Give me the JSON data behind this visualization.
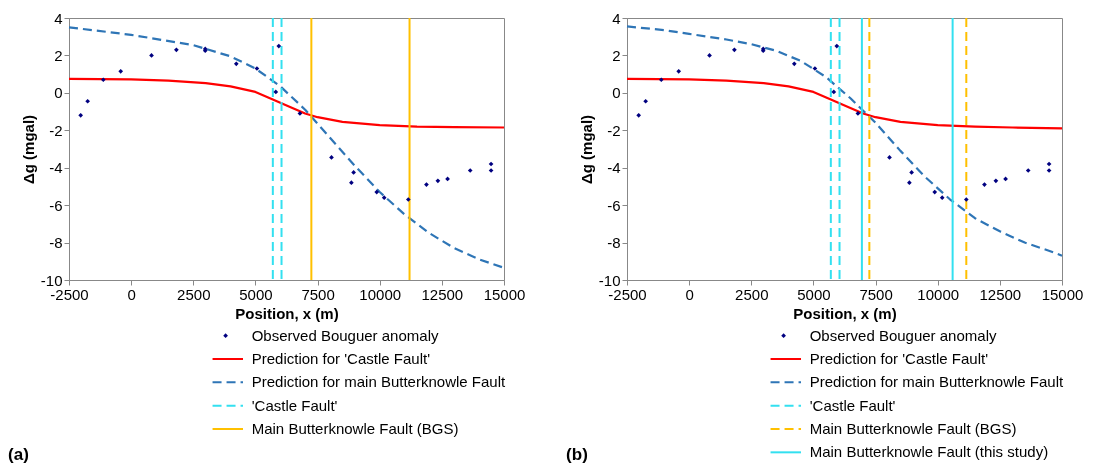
{
  "chart_data": [
    {
      "type": "line",
      "xlabel": "Position, x (m)",
      "ylabel": "Δg (mgal)",
      "xlim": [
        -2500,
        15000
      ],
      "ylim": [
        -10,
        4
      ],
      "xticks": [
        -2500,
        0,
        2500,
        5000,
        7500,
        10000,
        12500,
        15000
      ],
      "yticks": [
        -10,
        -8,
        -6,
        -4,
        -2,
        0,
        2,
        4
      ],
      "grid": false,
      "legend": "bottom",
      "annotations": [
        "(a)"
      ],
      "series": [
        {
          "name": "Observed Bouguer anomaly",
          "type": "scatter",
          "marker": "diamond",
          "color": "#000080",
          "x": [
            -2030,
            -1750,
            -1120,
            -420,
            820,
            1820,
            2980,
            2980,
            4230,
            5060,
            5940,
            5820,
            6790,
            8060,
            8860,
            8950,
            9880,
            10180,
            11150,
            11880,
            12340,
            12730,
            13640,
            14480,
            14480
          ],
          "values": [
            -1.2,
            -0.45,
            0.7,
            1.15,
            2.0,
            2.3,
            2.35,
            2.25,
            1.55,
            1.3,
            2.5,
            0.05,
            -1.1,
            -3.45,
            -4.8,
            -4.25,
            -5.3,
            -5.6,
            -5.7,
            -4.9,
            -4.7,
            -4.6,
            -4.15,
            -3.8,
            -4.15
          ]
        },
        {
          "name": "Prediction for 'Castle Fault'",
          "type": "line",
          "line_style": "solid",
          "color": "#ff0000",
          "x": [
            -2500,
            0,
            1500,
            3000,
            4000,
            5000,
            5700,
            6300,
            7000,
            7500,
            8500,
            10000,
            11500,
            13000,
            15000
          ],
          "values": [
            0.75,
            0.72,
            0.65,
            0.52,
            0.35,
            0.05,
            -0.35,
            -0.7,
            -1.1,
            -1.3,
            -1.55,
            -1.72,
            -1.8,
            -1.83,
            -1.85
          ]
        },
        {
          "name": "Prediction for main Butterknowle Fault",
          "type": "line",
          "line_style": "dashed",
          "color": "#2e75b6",
          "x": [
            -2500,
            0,
            2500,
            4000,
            5000,
            6000,
            7000,
            8000,
            9000,
            10000,
            11000,
            12000,
            13000,
            14000,
            15000
          ],
          "values": [
            3.5,
            3.1,
            2.55,
            1.95,
            1.3,
            0.35,
            -0.9,
            -2.4,
            -3.9,
            -5.3,
            -6.5,
            -7.5,
            -8.3,
            -8.9,
            -9.35
          ]
        }
      ],
      "ref_lines": [
        {
          "axis": "x",
          "value": 5700,
          "label": "'Castle Fault'",
          "color": "#33e0f0",
          "line_style": "dashed"
        },
        {
          "axis": "x",
          "value": 6050,
          "color": "#33e0f0",
          "line_style": "dashed"
        },
        {
          "axis": "x",
          "value": 7250,
          "label": "Main Butterknowle Fault (BGS)",
          "color": "#ffc000",
          "line_style": "solid"
        },
        {
          "axis": "x",
          "value": 11200,
          "color": "#ffc000",
          "line_style": "solid"
        }
      ]
    },
    {
      "type": "line",
      "xlabel": "Position, x (m)",
      "ylabel": "Δg (mgal)",
      "xlim": [
        -2500,
        15000
      ],
      "ylim": [
        -10,
        4
      ],
      "xticks": [
        -2500,
        0,
        2500,
        5000,
        7500,
        10000,
        12500,
        15000
      ],
      "yticks": [
        -10,
        -8,
        -6,
        -4,
        -2,
        0,
        2,
        4
      ],
      "grid": false,
      "legend": "bottom",
      "annotations": [
        "(b)"
      ],
      "series": [
        {
          "name": "Observed Bouguer anomaly",
          "type": "scatter",
          "marker": "diamond",
          "color": "#000080",
          "x": [
            -2030,
            -1750,
            -1120,
            -420,
            820,
            1820,
            2980,
            2980,
            4230,
            5060,
            5940,
            5820,
            6790,
            8060,
            8860,
            8950,
            9880,
            10180,
            11150,
            11880,
            12340,
            12730,
            13640,
            14480,
            14480
          ],
          "values": [
            -1.2,
            -0.45,
            0.7,
            1.15,
            2.0,
            2.3,
            2.35,
            2.25,
            1.55,
            1.3,
            2.5,
            0.05,
            -1.1,
            -3.45,
            -4.8,
            -4.25,
            -5.3,
            -5.6,
            -5.7,
            -4.9,
            -4.7,
            -4.6,
            -4.15,
            -3.8,
            -4.15
          ]
        },
        {
          "name": "Prediction for 'Castle Fault'",
          "type": "line",
          "line_style": "solid",
          "color": "#ff0000",
          "x": [
            -2500,
            0,
            1500,
            3000,
            4000,
            5000,
            5700,
            6300,
            7000,
            7500,
            8500,
            10000,
            11500,
            13000,
            15000
          ],
          "values": [
            0.75,
            0.72,
            0.65,
            0.52,
            0.35,
            0.05,
            -0.35,
            -0.7,
            -1.1,
            -1.3,
            -1.55,
            -1.72,
            -1.8,
            -1.85,
            -1.9
          ]
        },
        {
          "name": "Prediction for main Butterknowle Fault",
          "type": "line",
          "line_style": "dashed",
          "color": "#2e75b6",
          "x": [
            -2500,
            -1000,
            0,
            1500,
            2500,
            3500,
            4500,
            5500,
            6500,
            7500,
            8500,
            9500,
            10500,
            11500,
            12500,
            13500,
            14500,
            15000
          ],
          "values": [
            3.55,
            3.35,
            3.15,
            2.85,
            2.6,
            2.25,
            1.7,
            0.85,
            -0.3,
            -1.6,
            -3.1,
            -4.5,
            -5.7,
            -6.7,
            -7.4,
            -8.0,
            -8.45,
            -8.7
          ]
        }
      ],
      "ref_lines": [
        {
          "axis": "x",
          "value": 5700,
          "label": "'Castle Fault'",
          "color": "#33e0f0",
          "line_style": "dashed"
        },
        {
          "axis": "x",
          "value": 6050,
          "color": "#33e0f0",
          "line_style": "dashed"
        },
        {
          "axis": "x",
          "value": 7250,
          "label": "Main Butterknowle Fault (BGS)",
          "color": "#ffc000",
          "line_style": "dashed"
        },
        {
          "axis": "x",
          "value": 11150,
          "color": "#ffc000",
          "line_style": "dashed"
        },
        {
          "axis": "x",
          "value": 6950,
          "label": "Main Butterknowle Fault (this study)",
          "color": "#33e0f0",
          "line_style": "solid"
        },
        {
          "axis": "x",
          "value": 10600,
          "color": "#33e0f0",
          "line_style": "solid"
        }
      ]
    }
  ]
}
